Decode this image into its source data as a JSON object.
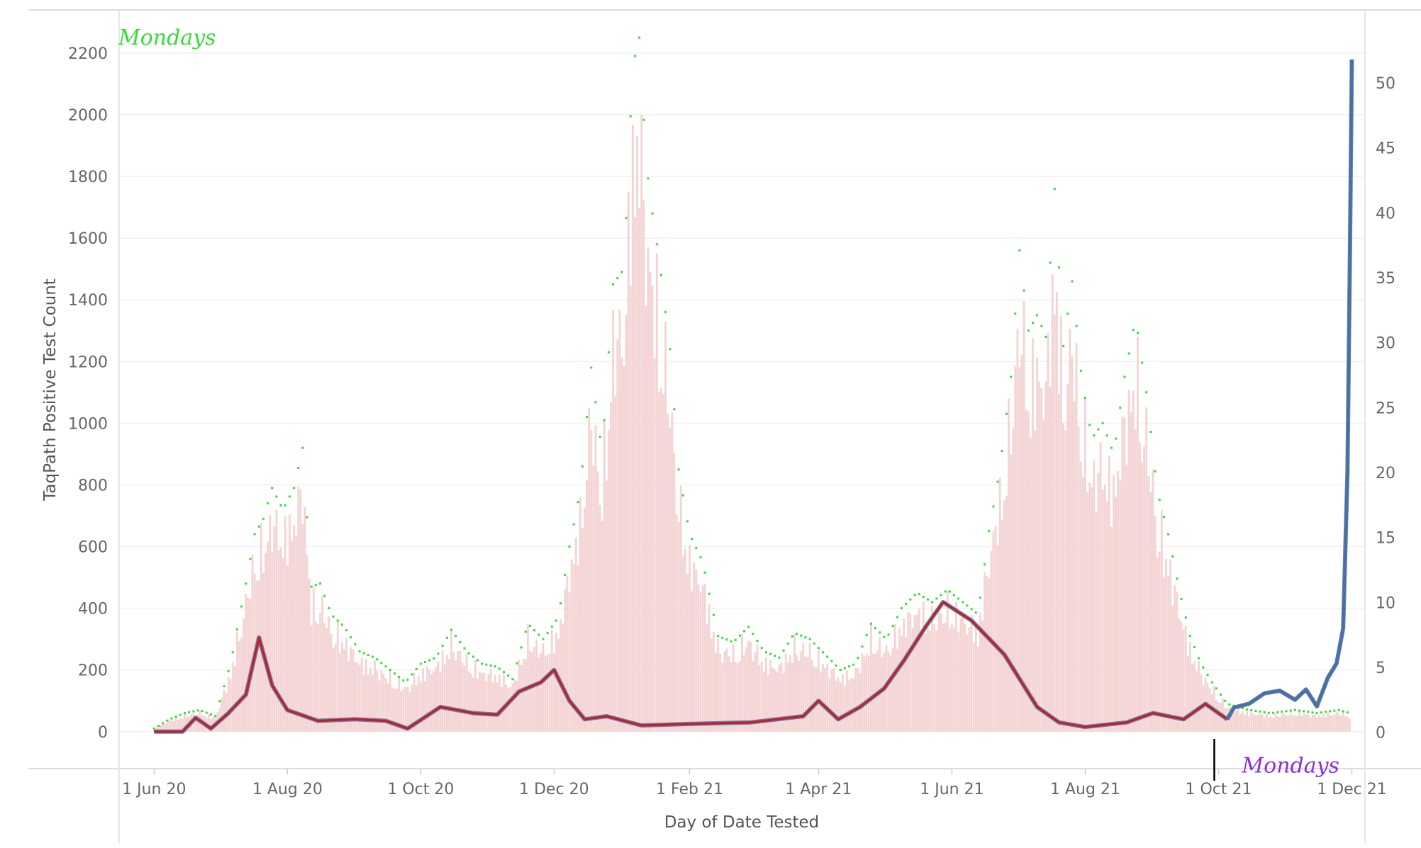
{
  "chart_data": {
    "type": "bar",
    "title": "",
    "xlabel": "Day of Date Tested",
    "ylabel": "TaqPath Positive Test Count",
    "ylabel_right": "",
    "x_range": [
      "2020-05-16",
      "2021-12-07"
    ],
    "xticks": [
      {
        "date": "2020-06-01",
        "label": "1 Jun 20"
      },
      {
        "date": "2020-08-01",
        "label": "1 Aug 20"
      },
      {
        "date": "2020-10-01",
        "label": "1 Oct 20"
      },
      {
        "date": "2020-12-01",
        "label": "1 Dec 20"
      },
      {
        "date": "2021-02-01",
        "label": "1 Feb 21"
      },
      {
        "date": "2021-04-01",
        "label": "1 Apr 21"
      },
      {
        "date": "2021-06-01",
        "label": "1 Jun 21"
      },
      {
        "date": "2021-08-01",
        "label": "1 Aug 21"
      },
      {
        "date": "2021-10-01",
        "label": "1 Oct 21"
      },
      {
        "date": "2021-12-01",
        "label": "1 Dec 21"
      }
    ],
    "y_left": {
      "ylim": [
        -120,
        2280
      ],
      "ticks": [
        0,
        200,
        400,
        600,
        800,
        1000,
        1200,
        1400,
        1600,
        1800,
        2000,
        2200
      ]
    },
    "y_right": {
      "ylim": [
        -2.8,
        54.2
      ],
      "ticks": [
        0,
        5,
        10,
        15,
        20,
        25,
        30,
        35,
        40,
        45,
        50
      ]
    },
    "grid": true,
    "legend": "none",
    "colors": {
      "bars": "#f4d3d3",
      "bar_dots": "#33dd33",
      "line_blue": "#4a6fa5",
      "line_red": "#cc1a1a",
      "annotation": "#8a2be2",
      "marker_line": "#000000"
    },
    "bars_daily": [
      {
        "date": "2020-06-01",
        "value": 10
      },
      {
        "date": "2020-06-08",
        "value": 40
      },
      {
        "date": "2020-06-15",
        "value": 60
      },
      {
        "date": "2020-06-22",
        "value": 70
      },
      {
        "date": "2020-06-29",
        "value": 50
      },
      {
        "date": "2020-07-06",
        "value": 220
      },
      {
        "date": "2020-07-13",
        "value": 480
      },
      {
        "date": "2020-07-17",
        "value": 640
      },
      {
        "date": "2020-07-21",
        "value": 690
      },
      {
        "date": "2020-07-25",
        "value": 790
      },
      {
        "date": "2020-07-30",
        "value": 720
      },
      {
        "date": "2020-08-04",
        "value": 790
      },
      {
        "date": "2020-08-08",
        "value": 920
      },
      {
        "date": "2020-08-12",
        "value": 470
      },
      {
        "date": "2020-08-16",
        "value": 480
      },
      {
        "date": "2020-08-21",
        "value": 380
      },
      {
        "date": "2020-08-27",
        "value": 340
      },
      {
        "date": "2020-09-03",
        "value": 260
      },
      {
        "date": "2020-09-10",
        "value": 240
      },
      {
        "date": "2020-09-17",
        "value": 200
      },
      {
        "date": "2020-09-24",
        "value": 160
      },
      {
        "date": "2020-10-01",
        "value": 220
      },
      {
        "date": "2020-10-08",
        "value": 240
      },
      {
        "date": "2020-10-15",
        "value": 330
      },
      {
        "date": "2020-10-22",
        "value": 260
      },
      {
        "date": "2020-10-29",
        "value": 220
      },
      {
        "date": "2020-11-05",
        "value": 210
      },
      {
        "date": "2020-11-12",
        "value": 170
      },
      {
        "date": "2020-11-19",
        "value": 350
      },
      {
        "date": "2020-11-26",
        "value": 300
      },
      {
        "date": "2020-12-03",
        "value": 370
      },
      {
        "date": "2020-12-08",
        "value": 600
      },
      {
        "date": "2020-12-13",
        "value": 780
      },
      {
        "date": "2020-12-18",
        "value": 1180
      },
      {
        "date": "2020-12-23",
        "value": 900
      },
      {
        "date": "2020-12-28",
        "value": 1450
      },
      {
        "date": "2021-01-02",
        "value": 1500
      },
      {
        "date": "2021-01-06",
        "value": 2160
      },
      {
        "date": "2021-01-09",
        "value": 2250
      },
      {
        "date": "2021-01-12",
        "value": 1850
      },
      {
        "date": "2021-01-15",
        "value": 1680
      },
      {
        "date": "2021-01-19",
        "value": 1480
      },
      {
        "date": "2021-01-23",
        "value": 1240
      },
      {
        "date": "2021-01-27",
        "value": 850
      },
      {
        "date": "2021-02-01",
        "value": 640
      },
      {
        "date": "2021-02-07",
        "value": 550
      },
      {
        "date": "2021-02-14",
        "value": 310
      },
      {
        "date": "2021-02-21",
        "value": 290
      },
      {
        "date": "2021-02-28",
        "value": 340
      },
      {
        "date": "2021-03-07",
        "value": 260
      },
      {
        "date": "2021-03-14",
        "value": 240
      },
      {
        "date": "2021-03-21",
        "value": 320
      },
      {
        "date": "2021-03-28",
        "value": 300
      },
      {
        "date": "2021-04-04",
        "value": 250
      },
      {
        "date": "2021-04-11",
        "value": 200
      },
      {
        "date": "2021-04-18",
        "value": 220
      },
      {
        "date": "2021-04-25",
        "value": 350
      },
      {
        "date": "2021-05-02",
        "value": 300
      },
      {
        "date": "2021-05-09",
        "value": 400
      },
      {
        "date": "2021-05-16",
        "value": 450
      },
      {
        "date": "2021-05-23",
        "value": 420
      },
      {
        "date": "2021-05-30",
        "value": 460
      },
      {
        "date": "2021-06-06",
        "value": 420
      },
      {
        "date": "2021-06-13",
        "value": 380
      },
      {
        "date": "2021-06-18",
        "value": 650
      },
      {
        "date": "2021-06-23",
        "value": 850
      },
      {
        "date": "2021-06-28",
        "value": 1150
      },
      {
        "date": "2021-07-02",
        "value": 1560
      },
      {
        "date": "2021-07-06",
        "value": 1300
      },
      {
        "date": "2021-07-10",
        "value": 1350
      },
      {
        "date": "2021-07-14",
        "value": 1280
      },
      {
        "date": "2021-07-18",
        "value": 1760
      },
      {
        "date": "2021-07-22",
        "value": 1250
      },
      {
        "date": "2021-07-26",
        "value": 1460
      },
      {
        "date": "2021-07-30",
        "value": 1170
      },
      {
        "date": "2021-08-04",
        "value": 950
      },
      {
        "date": "2021-08-09",
        "value": 1000
      },
      {
        "date": "2021-08-14",
        "value": 900
      },
      {
        "date": "2021-08-19",
        "value": 1150
      },
      {
        "date": "2021-08-24",
        "value": 1340
      },
      {
        "date": "2021-08-29",
        "value": 1100
      },
      {
        "date": "2021-09-03",
        "value": 780
      },
      {
        "date": "2021-09-08",
        "value": 640
      },
      {
        "date": "2021-09-13",
        "value": 460
      },
      {
        "date": "2021-09-18",
        "value": 310
      },
      {
        "date": "2021-09-23",
        "value": 220
      },
      {
        "date": "2021-09-28",
        "value": 160
      },
      {
        "date": "2021-10-05",
        "value": 90
      },
      {
        "date": "2021-10-15",
        "value": 70
      },
      {
        "date": "2021-10-25",
        "value": 60
      },
      {
        "date": "2021-11-05",
        "value": 70
      },
      {
        "date": "2021-11-15",
        "value": 60
      },
      {
        "date": "2021-11-25",
        "value": 70
      },
      {
        "date": "2021-11-30",
        "value": 60
      }
    ],
    "series": [
      {
        "axis": "left",
        "color": "#cc1a1a",
        "points": [
          {
            "date": "2020-06-01",
            "value": 0
          },
          {
            "date": "2020-06-14",
            "value": 0
          },
          {
            "date": "2020-06-20",
            "value": 45
          },
          {
            "date": "2020-06-27",
            "value": 10
          },
          {
            "date": "2020-07-05",
            "value": 60
          },
          {
            "date": "2020-07-13",
            "value": 120
          },
          {
            "date": "2020-07-19",
            "value": 305
          },
          {
            "date": "2020-07-25",
            "value": 150
          },
          {
            "date": "2020-08-01",
            "value": 70
          },
          {
            "date": "2020-08-15",
            "value": 35
          },
          {
            "date": "2020-09-01",
            "value": 40
          },
          {
            "date": "2020-09-15",
            "value": 35
          },
          {
            "date": "2020-09-25",
            "value": 10
          },
          {
            "date": "2020-10-10",
            "value": 80
          },
          {
            "date": "2020-10-25",
            "value": 60
          },
          {
            "date": "2020-11-05",
            "value": 55
          },
          {
            "date": "2020-11-15",
            "value": 130
          },
          {
            "date": "2020-11-25",
            "value": 160
          },
          {
            "date": "2020-12-01",
            "value": 200
          },
          {
            "date": "2020-12-08",
            "value": 100
          },
          {
            "date": "2020-12-15",
            "value": 40
          },
          {
            "date": "2020-12-25",
            "value": 50
          },
          {
            "date": "2021-01-10",
            "value": 20
          },
          {
            "date": "2021-02-01",
            "value": 25
          },
          {
            "date": "2021-03-01",
            "value": 30
          },
          {
            "date": "2021-03-25",
            "value": 50
          },
          {
            "date": "2021-04-01",
            "value": 100
          },
          {
            "date": "2021-04-10",
            "value": 40
          },
          {
            "date": "2021-04-20",
            "value": 80
          },
          {
            "date": "2021-05-01",
            "value": 140
          },
          {
            "date": "2021-05-10",
            "value": 230
          },
          {
            "date": "2021-05-20",
            "value": 340
          },
          {
            "date": "2021-05-28",
            "value": 420
          },
          {
            "date": "2021-06-10",
            "value": 360
          },
          {
            "date": "2021-06-25",
            "value": 250
          },
          {
            "date": "2021-07-10",
            "value": 80
          },
          {
            "date": "2021-07-20",
            "value": 30
          },
          {
            "date": "2021-08-01",
            "value": 15
          },
          {
            "date": "2021-08-20",
            "value": 30
          },
          {
            "date": "2021-09-01",
            "value": 60
          },
          {
            "date": "2021-09-15",
            "value": 40
          },
          {
            "date": "2021-09-25",
            "value": 90
          },
          {
            "date": "2021-10-05",
            "value": 40
          }
        ]
      },
      {
        "axis": "right",
        "color": "#4a6fa5",
        "points": [
          {
            "date": "2021-10-05",
            "value": 1.0
          },
          {
            "date": "2021-10-08",
            "value": 1.9
          },
          {
            "date": "2021-10-15",
            "value": 2.2
          },
          {
            "date": "2021-10-22",
            "value": 3.0
          },
          {
            "date": "2021-10-29",
            "value": 3.2
          },
          {
            "date": "2021-11-05",
            "value": 2.5
          },
          {
            "date": "2021-11-10",
            "value": 3.3
          },
          {
            "date": "2021-11-15",
            "value": 2.0
          },
          {
            "date": "2021-11-20",
            "value": 4.2
          },
          {
            "date": "2021-11-24",
            "value": 5.3
          },
          {
            "date": "2021-11-27",
            "value": 8.0
          },
          {
            "date": "2021-11-29",
            "value": 20.0
          },
          {
            "date": "2021-11-30",
            "value": 35.0
          },
          {
            "date": "2021-12-01",
            "value": 51.8
          }
        ]
      }
    ],
    "annotations": [
      {
        "text": "Mondays",
        "date": "2021-11-03",
        "axis": "left",
        "value": -110
      },
      {
        "text": "Mondays",
        "date": "2020-06-07",
        "axis": "left",
        "value": 2250
      }
    ]
  }
}
